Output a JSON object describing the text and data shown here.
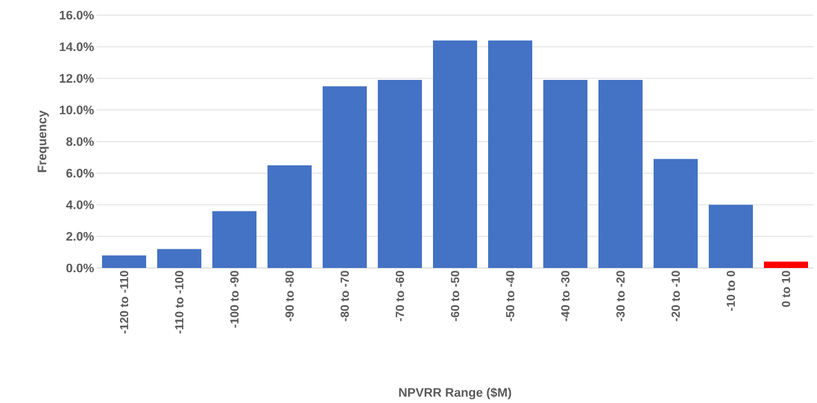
{
  "chart_data": {
    "type": "bar",
    "xlabel": "NPVRR Range ($M)",
    "ylabel": "Frequency",
    "categories": [
      "-120 to -110",
      "-110 to -100",
      "-100 to -90",
      "-90 to -80",
      "-80 to -70",
      "-70 to -60",
      "-60 to -50",
      "-50 to -40",
      "-40 to -30",
      "-30 to -20",
      "-20 to -10",
      "-10 to 0",
      "0 to 10"
    ],
    "values": [
      0.8,
      1.2,
      3.6,
      6.5,
      11.5,
      11.9,
      14.4,
      14.4,
      11.9,
      11.9,
      6.9,
      4.0,
      0.4
    ],
    "colors": [
      "#4472c4",
      "#4472c4",
      "#4472c4",
      "#4472c4",
      "#4472c4",
      "#4472c4",
      "#4472c4",
      "#4472c4",
      "#4472c4",
      "#4472c4",
      "#4472c4",
      "#4472c4",
      "#ff0000"
    ],
    "ylim": [
      0,
      16
    ],
    "yticks": [
      {
        "value": 0,
        "label": "0.0%"
      },
      {
        "value": 2,
        "label": "2.0%"
      },
      {
        "value": 4,
        "label": "4.0%"
      },
      {
        "value": 6,
        "label": "6.0%"
      },
      {
        "value": 8,
        "label": "8.0%"
      },
      {
        "value": 10,
        "label": "10.0%"
      },
      {
        "value": 12,
        "label": "12.0%"
      },
      {
        "value": 14,
        "label": "14.0%"
      },
      {
        "value": 16,
        "label": "16.0%"
      }
    ],
    "grid": "y"
  }
}
